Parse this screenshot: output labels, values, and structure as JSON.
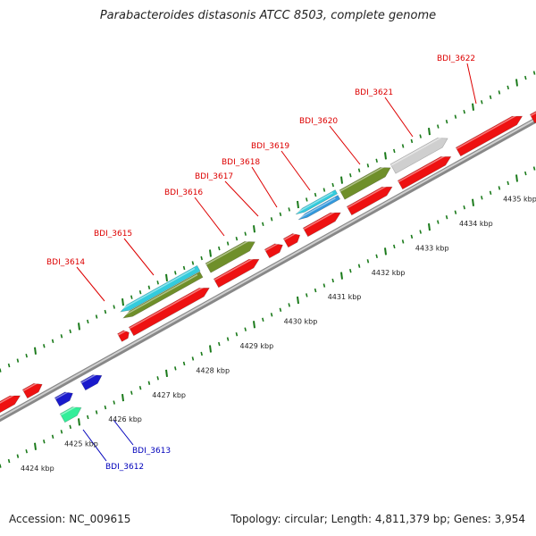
{
  "title": "Parabacteroides distasonis ATCC 8503, complete genome",
  "footer": {
    "accession": "Accession: NC_009615",
    "topology": "Topology: circular; Length: 4,811,379 bp; Genes: 3,954"
  },
  "colors": {
    "forward_gene": "#ee1111",
    "reverse_gene": "#1a1acc",
    "olive": "#6f8f2a",
    "cyan": "#33ccdd",
    "blue_light": "#3399dd",
    "grey": "#cfcfcf",
    "mint": "#33ee99",
    "label_top": "#dd0000",
    "label_bottom": "#0000bb",
    "tick": "#1a7a1a"
  },
  "kbp_labels": [
    "4424 kbp",
    "4425 kbp",
    "4426 kbp",
    "4427 kbp",
    "4428 kbp",
    "4429 kbp",
    "4430 kbp",
    "4431 kbp",
    "4432 kbp",
    "4433 kbp",
    "4434 kbp",
    "4435 kbp"
  ],
  "top_genes": [
    "BDI_3614",
    "BDI_3615",
    "BDI_3616",
    "BDI_3617",
    "BDI_3618",
    "BDI_3619",
    "BDI_3620",
    "BDI_3621",
    "BDI_3622"
  ],
  "bottom_genes": [
    "BDI_3612",
    "BDI_3613"
  ]
}
